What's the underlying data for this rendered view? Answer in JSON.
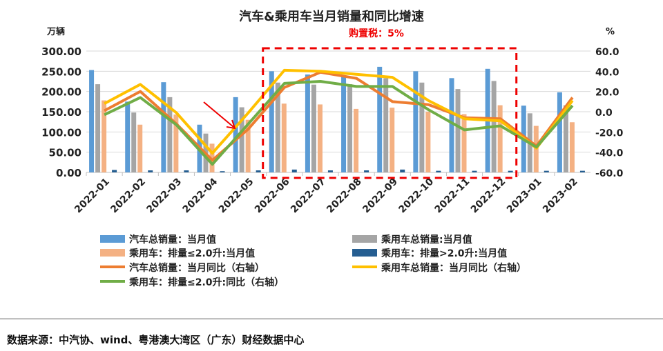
{
  "chart_data": {
    "type": "bar+line",
    "title": "汽车&乘用车当月销量和同比增速",
    "annotation": "购置税：5%",
    "ylabel_left": "万辆",
    "ylabel_right": "%",
    "ylim_left": [
      0,
      300
    ],
    "ylim_right": [
      -60,
      60
    ],
    "yticks_left": [
      "0.00",
      "50.00",
      "100.00",
      "150.00",
      "200.00",
      "250.00",
      "300.00"
    ],
    "yticks_right": [
      "-60.0",
      "-40.0",
      "-20.0",
      "0.0",
      "20.0",
      "40.0",
      "60.0"
    ],
    "categories": [
      "2022-01",
      "2022-02",
      "2022-03",
      "2022-04",
      "2022-05",
      "2022-06",
      "2022-07",
      "2022-08",
      "2022-09",
      "2022-10",
      "2022-11",
      "2022-12",
      "2023-01",
      "2023-02"
    ],
    "bar_series": [
      {
        "name": "汽车总销量：当月值",
        "color": "#5b9bd5",
        "values": [
          253,
          175,
          223,
          118,
          186,
          250,
          242,
          239,
          261,
          250,
          233,
          256,
          165,
          198
        ]
      },
      {
        "name": "乘用车总销量:当月值",
        "color": "#a5a5a5",
        "values": [
          218,
          148,
          186,
          96,
          161,
          222,
          217,
          218,
          233,
          222,
          206,
          226,
          146,
          166
        ]
      },
      {
        "name": "乘用车：排量≤2.0升:当月值",
        "color": "#f4b183",
        "values": [
          178,
          118,
          143,
          71,
          130,
          170,
          168,
          157,
          160,
          150,
          144,
          166,
          115,
          124
        ]
      },
      {
        "name": "乘用车：排量>2.0升:当月值",
        "color": "#255e91",
        "values": [
          6,
          5,
          5,
          3,
          5,
          7,
          5,
          5,
          7,
          4,
          4,
          4,
          4,
          4
        ]
      }
    ],
    "line_series": [
      {
        "name": "汽车总销量：当月同比（右轴）",
        "color": "#ed7d31",
        "values": [
          1,
          20,
          -12,
          -48,
          -17,
          24,
          39,
          33,
          10,
          7,
          -6,
          -7,
          -34,
          14
        ]
      },
      {
        "name": "乘用车总销量：当月同比（右轴）",
        "color": "#ffc000",
        "values": [
          8,
          27,
          -1,
          -41,
          -1,
          41,
          40,
          37,
          34,
          11,
          -7,
          -9,
          -36,
          11
        ]
      },
      {
        "name": "乘用车：排量≤2.0升:同比（右轴）",
        "color": "#70ad47",
        "values": [
          -3,
          14,
          -13,
          -52,
          -12,
          28,
          30,
          25,
          25,
          2,
          -18,
          -14,
          -35,
          6
        ]
      }
    ],
    "highlight_range": [
      "2022-06",
      "2022-12"
    ]
  },
  "source": "数据来源：中汽协、wind、粤港澳大湾区（广东）财经数据中心"
}
